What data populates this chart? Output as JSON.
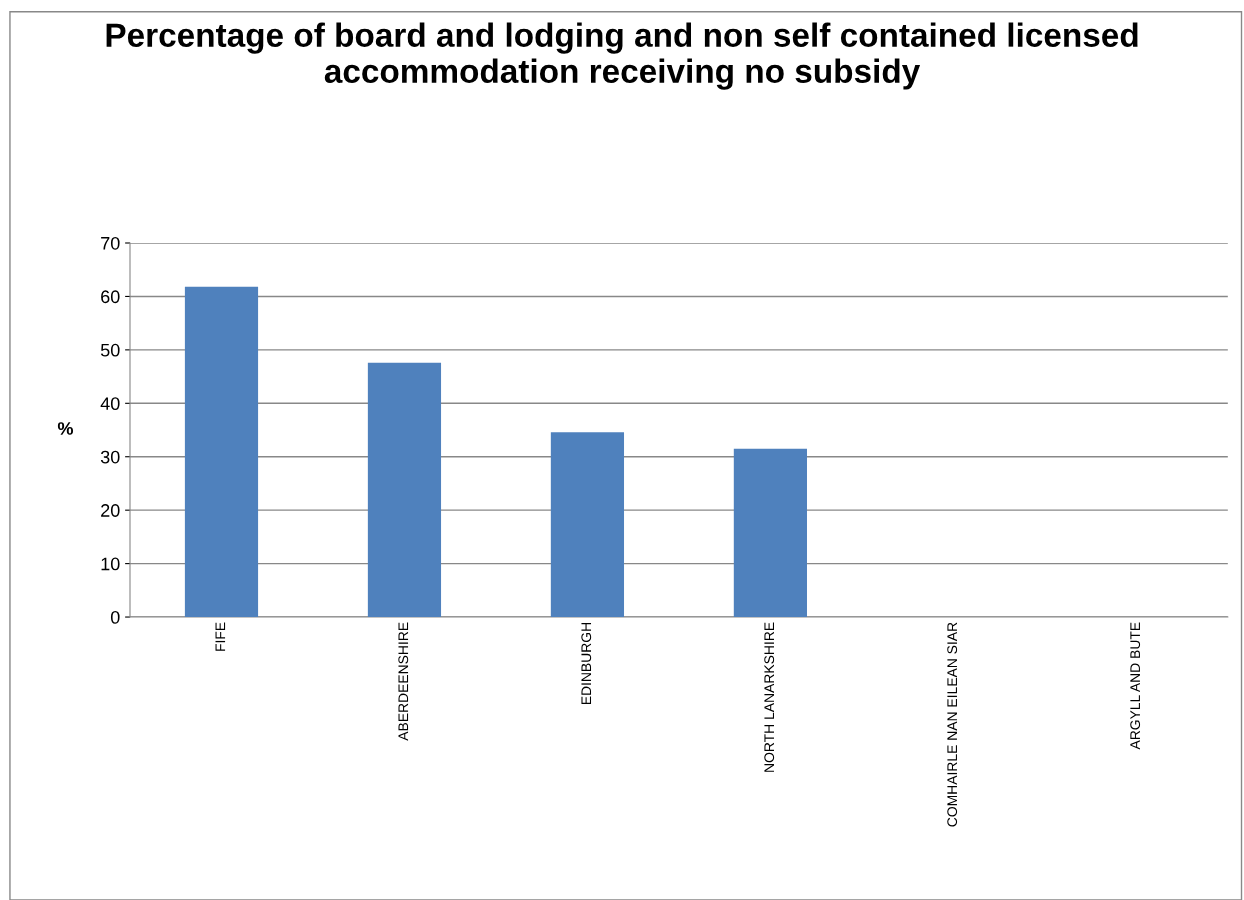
{
  "chart_data": {
    "type": "bar",
    "title": "Percentage of board and lodging and non self contained licensed accommodation receiving no subsidy",
    "ylabel": "%",
    "categories": [
      "FIFE",
      "ABERDEENSHIRE",
      "EDINBURGH",
      "NORTH LANARKSHIRE",
      "COMHAIRLE NAN EILEAN SIAR",
      "ARGYLL AND BUTE"
    ],
    "values": [
      61.8,
      47.6,
      34.6,
      31.5,
      0,
      0
    ],
    "color": "#4f81bd",
    "ylim": [
      0,
      70
    ],
    "yticks": [
      0,
      10,
      20,
      30,
      40,
      50,
      60,
      70
    ],
    "grid": "y"
  }
}
